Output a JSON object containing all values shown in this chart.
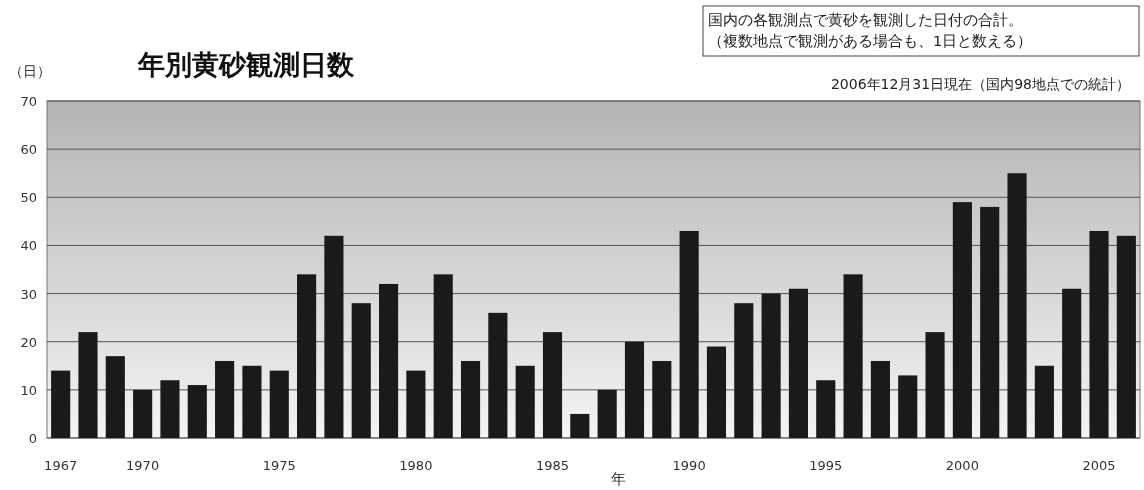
{
  "chart_data": {
    "type": "bar",
    "title": "年別黄砂観測日数",
    "ylabel": "（日）",
    "xlabel": "年",
    "annotations": [
      "国内の各観測点で黄砂を観測した日付の合計。",
      "（複数地点で観測がある場合も、1日と数える）",
      "2006年12月31日現在（国内98地点での統計）"
    ],
    "categories": [
      "1967",
      null,
      null,
      "1970",
      null,
      null,
      null,
      null,
      "1975",
      null,
      null,
      null,
      null,
      "1980",
      null,
      null,
      null,
      null,
      "1985",
      null,
      null,
      null,
      null,
      "1990",
      null,
      null,
      null,
      null,
      "1995",
      null,
      null,
      null,
      null,
      "2000",
      null,
      null,
      null,
      null,
      "2005",
      null
    ],
    "values": [
      14,
      22,
      17,
      10,
      12,
      11,
      16,
      15,
      14,
      34,
      42,
      28,
      32,
      14,
      34,
      16,
      26,
      15,
      22,
      5,
      10,
      20,
      16,
      43,
      19,
      28,
      30,
      31,
      12,
      34,
      16,
      13,
      22,
      49,
      48,
      55,
      15,
      31,
      43,
      42
    ],
    "color": "#1a1a1a",
    "ylim": [
      0,
      70
    ],
    "yticks": [
      0,
      10,
      20,
      30,
      40,
      50,
      60,
      70
    ],
    "grid": "y"
  }
}
